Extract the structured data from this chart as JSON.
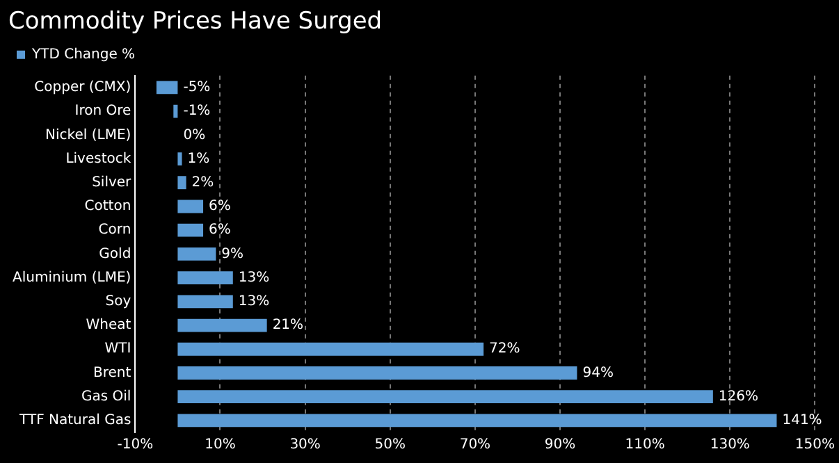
{
  "chart_data": {
    "type": "bar",
    "orientation": "horizontal",
    "title": "Commodity Prices Have Surged",
    "categories": [
      "Copper (CMX)",
      "Iron Ore",
      "Nickel (LME)",
      "Livestock",
      "Silver",
      "Cotton",
      "Corn",
      "Gold",
      "Aluminium (LME)",
      "Soy",
      "Wheat",
      "WTI",
      "Brent",
      "Gas Oil",
      "TTF Natural Gas"
    ],
    "series": [
      {
        "name": "YTD Change %",
        "color": "#5b9bd5",
        "values": [
          -5,
          -1,
          0,
          1,
          2,
          6,
          6,
          9,
          13,
          13,
          21,
          72,
          94,
          126,
          141
        ],
        "value_labels": [
          "-5%",
          "-1%",
          "0%",
          "1%",
          "2%",
          "6%",
          "6%",
          "9%",
          "13%",
          "13%",
          "21%",
          "72%",
          "94%",
          "126%",
          "141%"
        ]
      }
    ],
    "xlim": [
      -10,
      150
    ],
    "xticks": [
      {
        "value": -10,
        "label": "-10%"
      },
      {
        "value": 10,
        "label": "10%"
      },
      {
        "value": 30,
        "label": "30%"
      },
      {
        "value": 50,
        "label": "50%"
      },
      {
        "value": 70,
        "label": "70%"
      },
      {
        "value": 90,
        "label": "90%"
      },
      {
        "value": 110,
        "label": "110%"
      },
      {
        "value": 130,
        "label": "130%"
      },
      {
        "value": 150,
        "label": "150%"
      }
    ],
    "grid": "x",
    "legend": "top"
  }
}
